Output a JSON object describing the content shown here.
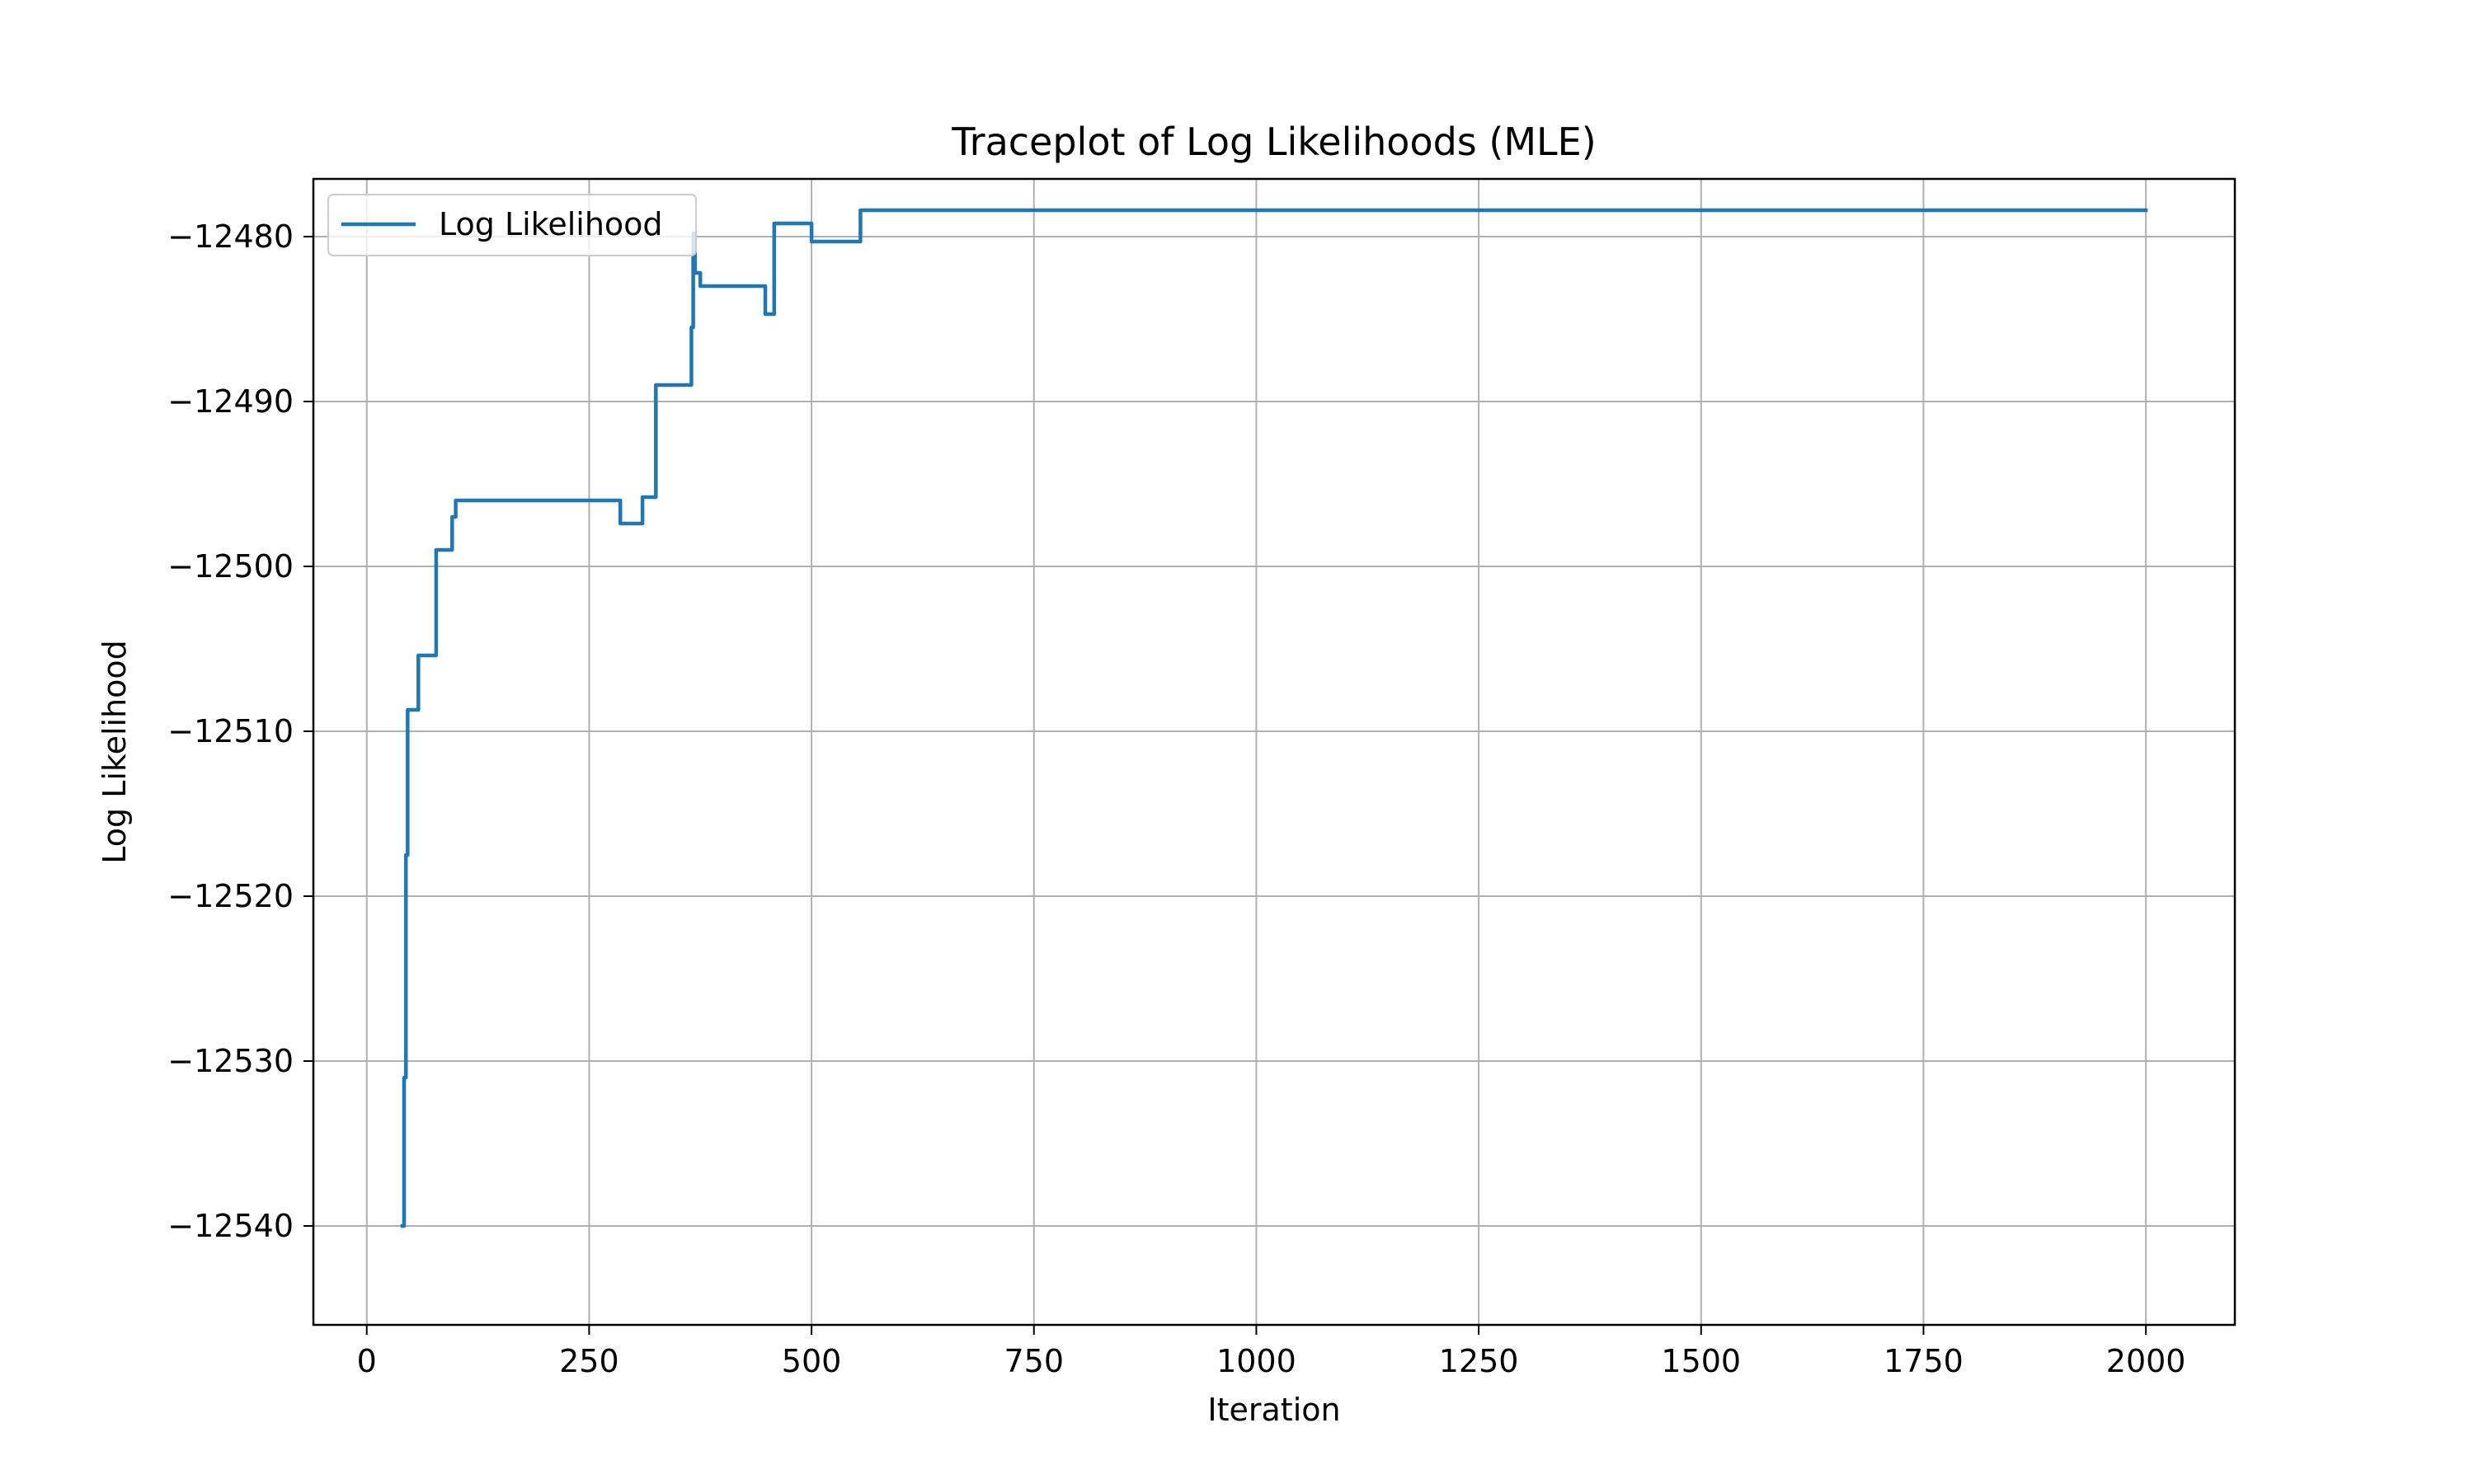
{
  "chart_data": {
    "type": "line",
    "title": "Traceplot of Log Likelihoods (MLE)",
    "xlabel": "Iteration",
    "ylabel": "Log Likelihood",
    "xlim": [
      -60,
      2100
    ],
    "ylim": [
      -12546,
      -12476.5
    ],
    "xticks": [
      0,
      250,
      500,
      750,
      1000,
      1250,
      1500,
      1750,
      2000
    ],
    "xtick_labels": [
      "0",
      "250",
      "500",
      "750",
      "1000",
      "1250",
      "1500",
      "1750",
      "2000"
    ],
    "yticks": [
      -12540,
      -12530,
      -12520,
      -12510,
      -12500,
      -12490,
      -12480
    ],
    "ytick_labels": [
      "−12540",
      "−12530",
      "−12520",
      "−12510",
      "−12500",
      "−12490",
      "−12480"
    ],
    "grid": true,
    "legend_position": "upper-left",
    "series": [
      {
        "name": "Log Likelihood",
        "color": "#1f77b4",
        "step": true,
        "x": [
          40,
          42,
          44,
          46,
          58,
          78,
          96,
          100,
          285,
          310,
          325,
          365,
          367,
          369,
          375,
          448,
          458,
          500,
          555,
          2000
        ],
        "y": [
          -12540,
          -12531,
          -12517.5,
          -12508.7,
          -12505.4,
          -12499,
          -12497,
          -12496,
          -12497.4,
          -12495.8,
          -12489,
          -12485.5,
          -12479.8,
          -12482.2,
          -12483,
          -12484.7,
          -12479.2,
          -12480.3,
          -12478.4,
          -12478.4
        ]
      }
    ]
  }
}
